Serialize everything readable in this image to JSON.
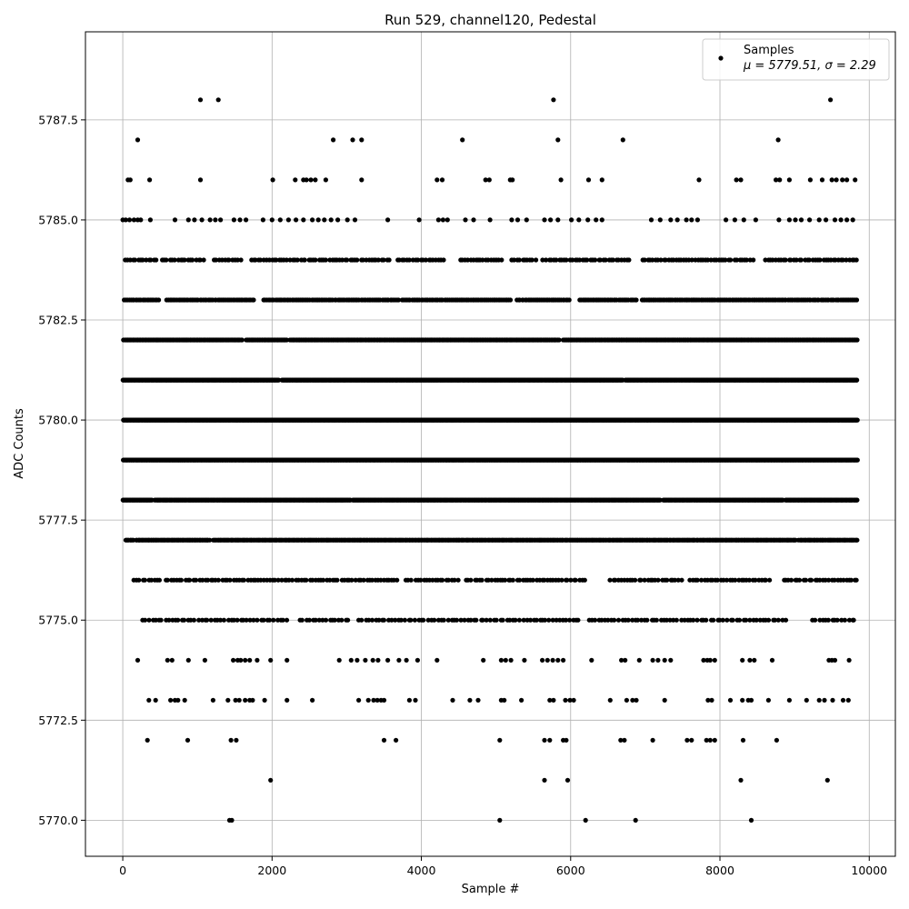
{
  "chart_data": {
    "type": "scatter",
    "title": "Run 529, channel120, Pedestal",
    "xlabel": "Sample #",
    "ylabel": "ADC Counts",
    "xlim": [
      -500,
      10350
    ],
    "ylim": [
      5769.1,
      5789.7
    ],
    "x_ticks": [
      0,
      2000,
      4000,
      6000,
      8000,
      10000
    ],
    "x_tick_labels": [
      "0",
      "2000",
      "4000",
      "6000",
      "8000",
      "10000"
    ],
    "y_ticks": [
      5770.0,
      5772.5,
      5775.0,
      5777.5,
      5780.0,
      5782.5,
      5785.0,
      5787.5
    ],
    "y_tick_labels": [
      "5770.0",
      "5772.5",
      "5775.0",
      "5777.5",
      "5780.0",
      "5782.5",
      "5785.0",
      "5787.5"
    ],
    "grid": true,
    "legend_position": "top-right",
    "marker_color": "#000000",
    "n_samples": 9850,
    "series": [
      {
        "name": "Samples",
        "stats_label": "μ = 5779.51, σ = 2.29",
        "levels": [
          {
            "y": 5770,
            "x": [
              1430,
              1460,
              5050,
              6200,
              6870,
              8420
            ]
          },
          {
            "y": 5771,
            "x": [
              1980,
              5650,
              5960,
              8280,
              9440
            ]
          },
          {
            "y": 5772,
            "x": [
              330,
              870,
              1450,
              1520,
              3500,
              3660,
              5050,
              5650,
              5720,
              5900,
              5940,
              6670,
              6720,
              7100,
              7560,
              7620,
              7820,
              7870,
              7930,
              8310,
              8760
            ]
          },
          {
            "y": 5773,
            "x": [
              350,
              440,
              640,
              700,
              740,
              830,
              1210,
              1410,
              1510,
              1560,
              1640,
              1700,
              1740,
              1900,
              2200,
              2540,
              3160,
              3290,
              3360,
              3410,
              3460,
              3500,
              3840,
              3920,
              4420,
              4650,
              4760,
              5070,
              5110,
              5340,
              5720,
              5770,
              5930,
              5990,
              6040,
              6530,
              6750,
              6830,
              6880,
              7260,
              7840,
              7890,
              8140,
              8300,
              8380,
              8420,
              8650,
              8930,
              9160,
              9330,
              9400,
              9510,
              9650,
              9720
            ]
          },
          {
            "y": 5774,
            "x": [
              200,
              600,
              660,
              880,
              1100,
              1480,
              1540,
              1580,
              1640,
              1700,
              1800,
              1980,
              2200,
              2900,
              3060,
              3140,
              3250,
              3350,
              3420,
              3550,
              3700,
              3800,
              3950,
              4210,
              4830,
              5070,
              5130,
              5200,
              5380,
              5620,
              5690,
              5760,
              5830,
              5900,
              6280,
              6680,
              6730,
              6920,
              7100,
              7170,
              7260,
              7340,
              7780,
              7830,
              7870,
              7930,
              8300,
              8400,
              8460,
              8700,
              9460,
              9500,
              9540,
              9730
            ]
          },
          {
            "y": 5775,
            "xs": 260,
            "xe": 9840,
            "step": 44,
            "gaps": [
              [
                2200,
                2350
              ],
              [
                3050,
                3150
              ],
              [
                6150,
                6250
              ],
              [
                8900,
                9200
              ]
            ]
          },
          {
            "y": 5776,
            "xs": 150,
            "xe": 9840,
            "step": 38,
            "gaps": [
              [
                500,
                580
              ],
              [
                1400,
                1420
              ],
              [
                3700,
                3760
              ],
              [
                4500,
                4560
              ],
              [
                6200,
                6500
              ],
              [
                7500,
                7560
              ],
              [
                8700,
                8850
              ]
            ]
          },
          {
            "y": 5777,
            "xs": 40,
            "xe": 9840,
            "step": 14,
            "gaps": [
              [
                150,
                180
              ],
              [
                1170,
                1200
              ],
              [
                9020,
                9050
              ]
            ]
          },
          {
            "y": 5778,
            "xs": 0,
            "xe": 9840,
            "step": 10,
            "gaps": [
              [
                400,
                420
              ],
              [
                3050,
                3080
              ],
              [
                7200,
                7230
              ],
              [
                8850,
                8880
              ]
            ]
          },
          {
            "y": 5779,
            "xs": 0,
            "xe": 9840,
            "step": 8,
            "gaps": []
          },
          {
            "y": 5780,
            "xs": 0,
            "xe": 9840,
            "step": 8,
            "gaps": []
          },
          {
            "y": 5781,
            "xs": 0,
            "xe": 9840,
            "step": 9,
            "gaps": [
              [
                2100,
                2130
              ],
              [
                6700,
                6730
              ]
            ]
          },
          {
            "y": 5782,
            "xs": 0,
            "xe": 9840,
            "step": 12,
            "gaps": [
              [
                1600,
                1650
              ],
              [
                2200,
                2240
              ],
              [
                5850,
                5900
              ]
            ]
          },
          {
            "y": 5783,
            "xs": 0,
            "xe": 9840,
            "step": 22,
            "gaps": [
              [
                500,
                580
              ],
              [
                1500,
                1520
              ],
              [
                1780,
                1880
              ],
              [
                3700,
                3740
              ],
              [
                5200,
                5270
              ],
              [
                6000,
                6100
              ],
              [
                6900,
                6950
              ]
            ]
          },
          {
            "y": 5784,
            "xs": 0,
            "xe": 9840,
            "step": 35,
            "gaps": [
              [
                450,
                520
              ],
              [
                1100,
                1200
              ],
              [
                1600,
                1700
              ],
              [
                3600,
                3680
              ],
              [
                4300,
                4520
              ],
              [
                5100,
                5200
              ],
              [
                5550,
                5620
              ],
              [
                6800,
                6960
              ],
              [
                8450,
                8600
              ]
            ]
          },
          {
            "y": 5785,
            "x": [
              0,
              40,
              90,
              150,
              200,
              240,
              370,
              700,
              880,
              960,
              1060,
              1170,
              1240,
              1310,
              1490,
              1570,
              1650,
              1880,
              2000,
              2110,
              2220,
              2320,
              2420,
              2540,
              2620,
              2700,
              2790,
              2880,
              3010,
              3110,
              3550,
              3970,
              4230,
              4290,
              4350,
              4590,
              4700,
              4920,
              5210,
              5290,
              5410,
              5650,
              5730,
              5830,
              6010,
              6110,
              6230,
              6340,
              6420,
              7080,
              7200,
              7340,
              7430,
              7550,
              7620,
              7700,
              8080,
              8200,
              8320,
              8480,
              8790,
              8930,
              9010,
              9090,
              9200,
              9330,
              9420,
              9540,
              9620,
              9700,
              9780
            ]
          },
          {
            "y": 5786,
            "x": [
              70,
              100,
              360,
              1040,
              2010,
              2310,
              2420,
              2460,
              2520,
              2580,
              2720,
              3200,
              4210,
              4280,
              4860,
              4910,
              5190,
              5220,
              5870,
              6240,
              6420,
              7720,
              8220,
              8280,
              8750,
              8800,
              8930,
              9210,
              9370,
              9500,
              9560,
              9640,
              9700,
              9810
            ]
          },
          {
            "y": 5787,
            "x": [
              200,
              2820,
              3080,
              3200,
              4550,
              5830,
              6700,
              8780
            ]
          },
          {
            "y": 5788,
            "x": [
              1040,
              1280,
              5770,
              9480
            ]
          }
        ]
      }
    ]
  }
}
